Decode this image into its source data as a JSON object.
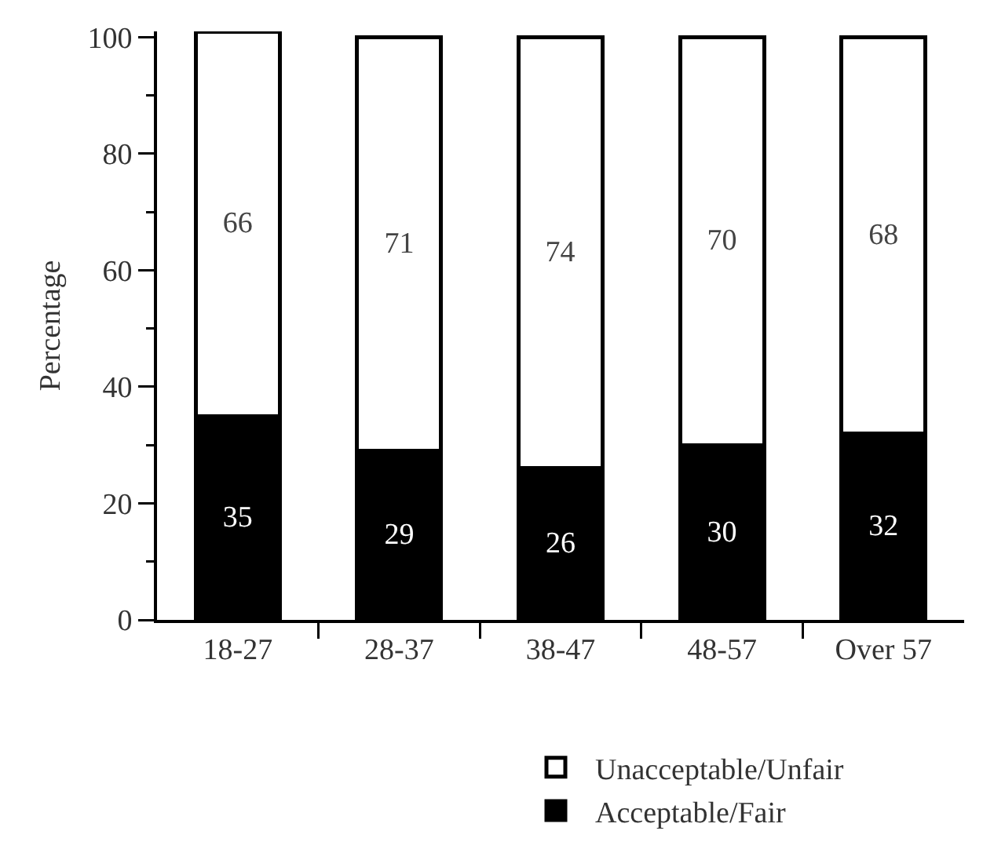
{
  "chart_data": {
    "type": "bar",
    "stacked": true,
    "ylabel": "Percentage",
    "categories": [
      "18-27",
      "28-37",
      "38-47",
      "48-57",
      "Over 57"
    ],
    "series": [
      {
        "name": "Acceptable/Fair",
        "color": "#000000",
        "values": [
          35,
          29,
          26,
          30,
          32
        ]
      },
      {
        "name": "Unacceptable/Unfair",
        "color": "#ffffff",
        "values": [
          66,
          71,
          74,
          70,
          68
        ]
      }
    ],
    "ylim": [
      0,
      101
    ],
    "yticks": [
      0,
      {
        "value": 10,
        "label": null
      },
      20,
      {
        "value": 30,
        "label": null
      },
      40,
      {
        "value": 50,
        "label": null
      },
      60,
      {
        "value": 70,
        "label": null
      },
      80,
      {
        "value": 90,
        "label": null
      },
      100
    ],
    "data_labels": true,
    "grid": false,
    "legend": "bottom"
  }
}
